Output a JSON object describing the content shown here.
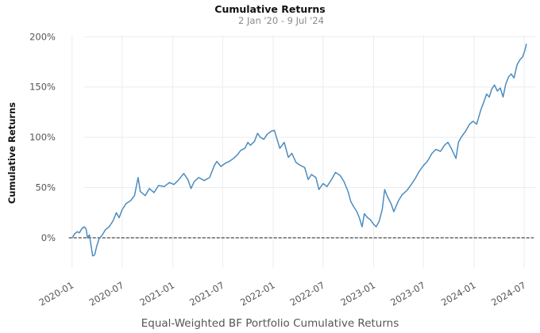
{
  "chart_data": {
    "type": "line",
    "title": "Cumulative Returns",
    "subtitle": "2 Jan '20 -  9 Jul '24",
    "ylabel": "Cumulative Returns",
    "xlabel": "Equal-Weighted BF Portfolio Cumulative Returns",
    "x_ticks": [
      "2020-01",
      "2020-07",
      "2021-01",
      "2021-07",
      "2022-01",
      "2022-07",
      "2023-01",
      "2023-07",
      "2024-01",
      "2024-07"
    ],
    "y_ticks": [
      "0%",
      "50%",
      "100%",
      "150%",
      "200%"
    ],
    "ylim": [
      -30,
      205
    ],
    "xlim": [
      "2019-12-01",
      "2024-08-10"
    ],
    "grid": true,
    "baseline": 0,
    "line_color": "#4c8cbf",
    "series": [
      {
        "name": "",
        "points": [
          [
            "2020-01-02",
            0
          ],
          [
            "2020-01-10",
            4
          ],
          [
            "2020-01-20",
            6
          ],
          [
            "2020-01-28",
            5
          ],
          [
            "2020-02-05",
            9
          ],
          [
            "2020-02-14",
            11
          ],
          [
            "2020-02-21",
            9
          ],
          [
            "2020-02-26",
            0
          ],
          [
            "2020-03-04",
            3
          ],
          [
            "2020-03-10",
            -8
          ],
          [
            "2020-03-16",
            -18
          ],
          [
            "2020-03-23",
            -17
          ],
          [
            "2020-03-31",
            -8
          ],
          [
            "2020-04-08",
            -1
          ],
          [
            "2020-04-20",
            3
          ],
          [
            "2020-05-01",
            8
          ],
          [
            "2020-05-15",
            11
          ],
          [
            "2020-05-29",
            17
          ],
          [
            "2020-06-10",
            25
          ],
          [
            "2020-06-20",
            20
          ],
          [
            "2020-07-01",
            28
          ],
          [
            "2020-07-15",
            34
          ],
          [
            "2020-08-01",
            37
          ],
          [
            "2020-08-15",
            42
          ],
          [
            "2020-08-28",
            60
          ],
          [
            "2020-09-05",
            46
          ],
          [
            "2020-09-23",
            42
          ],
          [
            "2020-10-08",
            49
          ],
          [
            "2020-10-25",
            45
          ],
          [
            "2020-11-10",
            52
          ],
          [
            "2020-12-01",
            51
          ],
          [
            "2020-12-20",
            55
          ],
          [
            "2021-01-05",
            53
          ],
          [
            "2021-01-20",
            57
          ],
          [
            "2021-02-10",
            64
          ],
          [
            "2021-02-25",
            58
          ],
          [
            "2021-03-08",
            49
          ],
          [
            "2021-03-20",
            56
          ],
          [
            "2021-04-05",
            60
          ],
          [
            "2021-04-25",
            57
          ],
          [
            "2021-05-15",
            60
          ],
          [
            "2021-06-01",
            72
          ],
          [
            "2021-06-10",
            76
          ],
          [
            "2021-06-25",
            71
          ],
          [
            "2021-07-10",
            74
          ],
          [
            "2021-07-25",
            76
          ],
          [
            "2021-08-10",
            79
          ],
          [
            "2021-08-25",
            83
          ],
          [
            "2021-09-05",
            87
          ],
          [
            "2021-09-20",
            89
          ],
          [
            "2021-10-01",
            95
          ],
          [
            "2021-10-10",
            92
          ],
          [
            "2021-10-25",
            96
          ],
          [
            "2021-11-05",
            104
          ],
          [
            "2021-11-15",
            100
          ],
          [
            "2021-11-28",
            98
          ],
          [
            "2021-12-10",
            103
          ],
          [
            "2021-12-25",
            106
          ],
          [
            "2022-01-05",
            107
          ],
          [
            "2022-01-15",
            98
          ],
          [
            "2022-01-25",
            89
          ],
          [
            "2022-02-10",
            95
          ],
          [
            "2022-02-25",
            80
          ],
          [
            "2022-03-10",
            84
          ],
          [
            "2022-03-25",
            75
          ],
          [
            "2022-04-10",
            72
          ],
          [
            "2022-04-25",
            70
          ],
          [
            "2022-05-08",
            58
          ],
          [
            "2022-05-20",
            63
          ],
          [
            "2022-06-05",
            60
          ],
          [
            "2022-06-16",
            48
          ],
          [
            "2022-07-01",
            54
          ],
          [
            "2022-07-15",
            51
          ],
          [
            "2022-08-01",
            58
          ],
          [
            "2022-08-15",
            65
          ],
          [
            "2022-09-01",
            62
          ],
          [
            "2022-09-15",
            56
          ],
          [
            "2022-09-30",
            46
          ],
          [
            "2022-10-10",
            36
          ],
          [
            "2022-10-20",
            31
          ],
          [
            "2022-11-01",
            26
          ],
          [
            "2022-11-10",
            20
          ],
          [
            "2022-11-20",
            11
          ],
          [
            "2022-11-28",
            24
          ],
          [
            "2022-12-10",
            20
          ],
          [
            "2022-12-20",
            18
          ],
          [
            "2022-12-30",
            14
          ],
          [
            "2023-01-10",
            11
          ],
          [
            "2023-01-20",
            16
          ],
          [
            "2023-02-01",
            28
          ],
          [
            "2023-02-10",
            48
          ],
          [
            "2023-02-20",
            41
          ],
          [
            "2023-03-05",
            34
          ],
          [
            "2023-03-15",
            26
          ],
          [
            "2023-04-01",
            37
          ],
          [
            "2023-04-15",
            43
          ],
          [
            "2023-05-01",
            47
          ],
          [
            "2023-05-15",
            52
          ],
          [
            "2023-06-01",
            59
          ],
          [
            "2023-06-15",
            66
          ],
          [
            "2023-07-01",
            72
          ],
          [
            "2023-07-15",
            76
          ],
          [
            "2023-08-01",
            84
          ],
          [
            "2023-08-15",
            88
          ],
          [
            "2023-09-01",
            86
          ],
          [
            "2023-09-15",
            92
          ],
          [
            "2023-09-28",
            95
          ],
          [
            "2023-10-10",
            89
          ],
          [
            "2023-10-20",
            83
          ],
          [
            "2023-10-27",
            79
          ],
          [
            "2023-11-05",
            95
          ],
          [
            "2023-11-15",
            100
          ],
          [
            "2023-12-01",
            106
          ],
          [
            "2023-12-15",
            113
          ],
          [
            "2023-12-28",
            116
          ],
          [
            "2024-01-10",
            113
          ],
          [
            "2024-01-25",
            127
          ],
          [
            "2024-02-05",
            135
          ],
          [
            "2024-02-15",
            143
          ],
          [
            "2024-02-25",
            140
          ],
          [
            "2024-03-05",
            148
          ],
          [
            "2024-03-15",
            152
          ],
          [
            "2024-03-25",
            146
          ],
          [
            "2024-04-05",
            149
          ],
          [
            "2024-04-15",
            140
          ],
          [
            "2024-04-25",
            153
          ],
          [
            "2024-05-05",
            160
          ],
          [
            "2024-05-15",
            163
          ],
          [
            "2024-05-25",
            159
          ],
          [
            "2024-06-05",
            172
          ],
          [
            "2024-06-15",
            177
          ],
          [
            "2024-06-25",
            180
          ],
          [
            "2024-07-03",
            186
          ],
          [
            "2024-07-09",
            193
          ]
        ]
      }
    ]
  }
}
